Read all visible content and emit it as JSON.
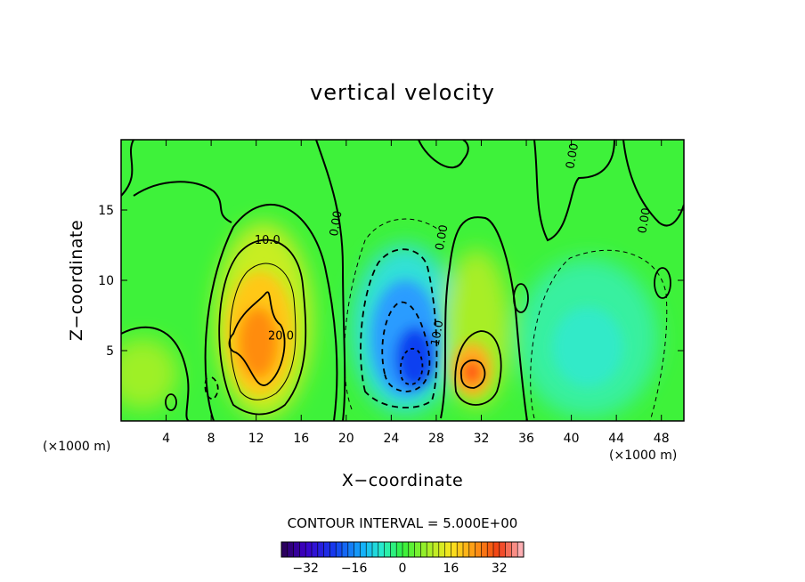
{
  "chart_data": {
    "type": "heatmap",
    "title": "vertical velocity",
    "xlabel": "X−coordinate",
    "ylabel": "Z−coordinate",
    "x_unit_left": "(×1000 m)",
    "x_unit_right": "(×1000 m)",
    "xlim": [
      0,
      50
    ],
    "ylim": [
      0,
      20
    ],
    "xticks": [
      4,
      8,
      12,
      16,
      20,
      24,
      28,
      32,
      36,
      40,
      44,
      48
    ],
    "xtick_labels": [
      "4",
      "8",
      "12",
      "16",
      "20",
      "24",
      "28",
      "32",
      "36",
      "40",
      "44",
      "48"
    ],
    "yticks": [
      5,
      10,
      15
    ],
    "ytick_labels": [
      "5",
      "10",
      "15"
    ],
    "contour_interval_text": "CONTOUR INTERVAL = 5.000E+00",
    "contour_interval": 5.0,
    "contour_labels": [
      {
        "text": "10.0",
        "x": 13.0,
        "y": 12.6
      },
      {
        "text": "20.0",
        "x": 14.2,
        "y": 5.8
      },
      {
        "text": "0.00",
        "x": 19.4,
        "y": 14.0
      },
      {
        "text": "0.00",
        "x": 28.8,
        "y": 13.0
      },
      {
        "text": "10.0",
        "x": 28.4,
        "y": 6.2
      },
      {
        "text": "0.00",
        "x": 40.4,
        "y": 18.8
      },
      {
        "text": "0.00",
        "x": 46.8,
        "y": 14.2
      }
    ],
    "features": [
      {
        "name": "updraft",
        "x": 13.0,
        "z": 5.5,
        "peak": 24
      },
      {
        "name": "downdraft",
        "x": 26.0,
        "z": 4.5,
        "peak": -26
      },
      {
        "name": "updraft",
        "x": 31.0,
        "z": 3.5,
        "peak": 20
      },
      {
        "name": "weak downdraft",
        "x": 41.5,
        "z": 5.5,
        "peak": -6
      }
    ],
    "colorbar": {
      "range": [
        -40,
        40
      ],
      "ticks": [
        -32,
        -16,
        0,
        16,
        32
      ],
      "tick_labels": [
        "−32",
        "−16",
        "0",
        "16",
        "32"
      ]
    }
  }
}
